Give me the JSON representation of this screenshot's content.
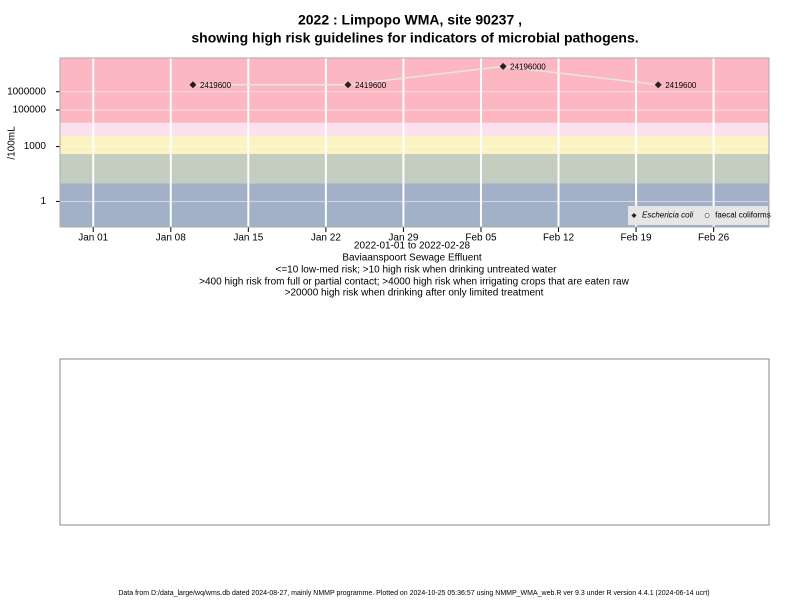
{
  "chart_data": {
    "type": "line",
    "title": "2022 : Limpopo WMA, site 90237 ,",
    "subtitle": "showing high risk guidelines for indicators of microbial pathogens.",
    "y_label": "/100mL",
    "x_label": "2022-01-01 to 2022-02-28",
    "site_name": "Baviaanspoort Sewage Effluent",
    "notes": [
      "<=10 low-med risk; >10 high risk when drinking untreated water",
      ">400 high risk from full or partial contact; >4000 high risk when irrigating crops that are eaten raw",
      ">20000 high risk when drinking after only limited treatment"
    ],
    "footer": "Data from D:/data_large/wq/wms.db dated 2024-08-27, mainly NMMP programme. Plotted on 2024-10-25 05:36:57 using NMMP_WMA_web.R ver 9.3 under R version 4.4.1 (2024-06-14 ucrt)",
    "x": [
      "2022-01-10",
      "2022-01-24",
      "2022-02-07",
      "2022-02-21"
    ],
    "series": [
      {
        "name": "Eschericia coli",
        "color": "#222222",
        "marker": "diamond",
        "values": [
          2419600,
          2419600,
          24196000,
          2419600
        ]
      },
      {
        "name": "faecal coliforms",
        "color": "#ffffff",
        "marker": "circle",
        "values": [
          null,
          null,
          null,
          null
        ]
      }
    ],
    "line_color": "#e6e6e6",
    "log_y": true,
    "ylim": [
      0.04,
      70000000
    ],
    "yticks": [
      1,
      1000,
      100000,
      1000000
    ],
    "xlim": [
      "2021-12-29",
      "2022-03-03"
    ],
    "xticks": [
      {
        "value": "2022-01-01",
        "label": "Jan 01"
      },
      {
        "value": "2022-01-08",
        "label": "Jan 08"
      },
      {
        "value": "2022-01-15",
        "label": "Jan 15"
      },
      {
        "value": "2022-01-22",
        "label": "Jan 22"
      },
      {
        "value": "2022-01-29",
        "label": "Jan 29"
      },
      {
        "value": "2022-02-05",
        "label": "Feb 05"
      },
      {
        "value": "2022-02-12",
        "label": "Feb 12"
      },
      {
        "value": "2022-02-19",
        "label": "Feb 19"
      },
      {
        "value": "2022-02-26",
        "label": "Feb 26"
      }
    ],
    "thresholds": [
      10,
      400,
      4000,
      20000
    ],
    "band_colors": [
      "#a3b1c8",
      "#c3cdc0",
      "#fbf3c1",
      "#fde0ee",
      "#fcb7c3"
    ],
    "grid": true,
    "legend_position": "bottom-right"
  }
}
